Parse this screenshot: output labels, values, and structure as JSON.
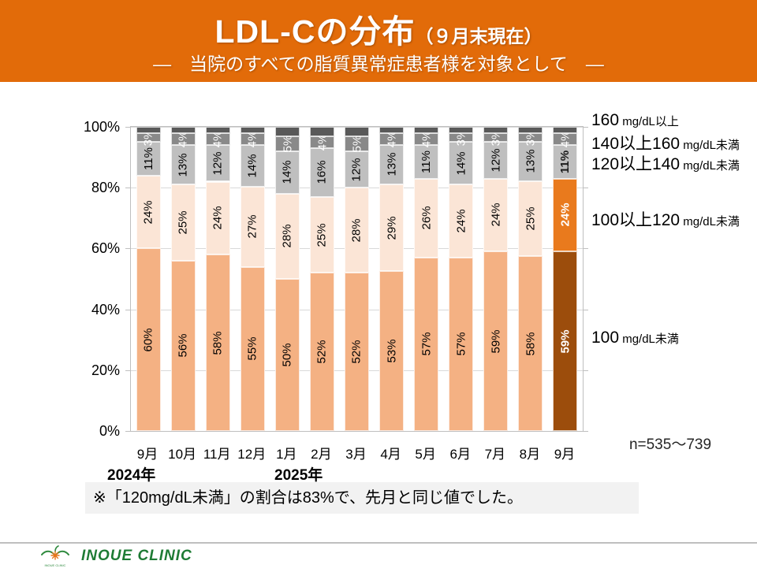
{
  "header": {
    "title_main": "LDL-Cの分布",
    "title_paren": "（９月末現在）",
    "subtitle": "―　当院のすべての脂質異常症患者様を対象として　―"
  },
  "chart_data": {
    "type": "bar",
    "stacked": true,
    "title": "LDL-Cの分布（９月末現在）",
    "categories": [
      "9月",
      "10月",
      "11月",
      "12月",
      "1月",
      "2月",
      "3月",
      "4月",
      "5月",
      "6月",
      "7月",
      "8月",
      "9月"
    ],
    "year_labels": [
      "2024年",
      "2025年"
    ],
    "ylim": [
      0,
      100
    ],
    "yticks": [
      "100%",
      "80%",
      "60%",
      "40%",
      "20%",
      "0%"
    ],
    "grid": true,
    "series": [
      {
        "name": "100 mg/dL未満",
        "values": [
          60,
          56,
          58,
          55,
          50,
          52,
          52,
          53,
          57,
          57,
          59,
          58,
          59
        ],
        "color": "#F4B183",
        "label_color": "#000000",
        "last": {
          "color": "#9C4D0C",
          "label_color": "#FFFFFF",
          "bold": true
        }
      },
      {
        "name": "100以上120 mg/dL未満",
        "values": [
          24,
          25,
          24,
          27,
          28,
          25,
          28,
          29,
          26,
          24,
          24,
          25,
          24
        ],
        "color": "#FBE5D6",
        "label_color": "#000000",
        "last": {
          "color": "#E97A1D",
          "label_color": "#FFFFFF",
          "bold": true
        }
      },
      {
        "name": "120以上140 mg/dL未満",
        "values": [
          11,
          13,
          12,
          14,
          14,
          16,
          12,
          13,
          11,
          14,
          12,
          13,
          11
        ],
        "color": "#BFBFBF",
        "label_color": "#000000",
        "last": {
          "color": "#BFBFBF",
          "label_color": "#1A1A1A",
          "bold": true
        }
      },
      {
        "name": "140以上160 mg/dL未満",
        "values": [
          3,
          4,
          4,
          4,
          5,
          4,
          5,
          4,
          4,
          3,
          3,
          3,
          4
        ],
        "color": "#898989",
        "label_color": "#FFFFFF",
        "last": {
          "color": "#898989",
          "label_color": "#FFFFFF",
          "bold": false
        }
      },
      {
        "name": "160 mg/dL以上",
        "values": [
          2,
          2,
          2,
          2,
          3,
          3,
          3,
          2,
          2,
          2,
          2,
          2,
          2
        ],
        "color": "#595959",
        "show_labels": false
      }
    ]
  },
  "legend": {
    "items": [
      {
        "main": "160",
        "suffix": " mg/dL以上"
      },
      {
        "main": "140以上160",
        "suffix": " mg/dL未満"
      },
      {
        "main": "120以上140",
        "suffix": " mg/dL未満"
      },
      {
        "main": "100以上120",
        "suffix": " mg/dL未満"
      },
      {
        "main": "100",
        "suffix": " mg/dL未満"
      }
    ]
  },
  "sample": {
    "label": "n=535～739"
  },
  "note": {
    "text": "※「120mg/dL未満」の割合は83%で、先月と同じ値でした。"
  },
  "footer": {
    "clinic_name": "INOUE CLINIC"
  },
  "colors": {
    "header_bg": "#E26B09",
    "accent_orange": "#E97A1D",
    "accent_brown": "#9C4D0C",
    "logo_green": "#1E7B34"
  }
}
